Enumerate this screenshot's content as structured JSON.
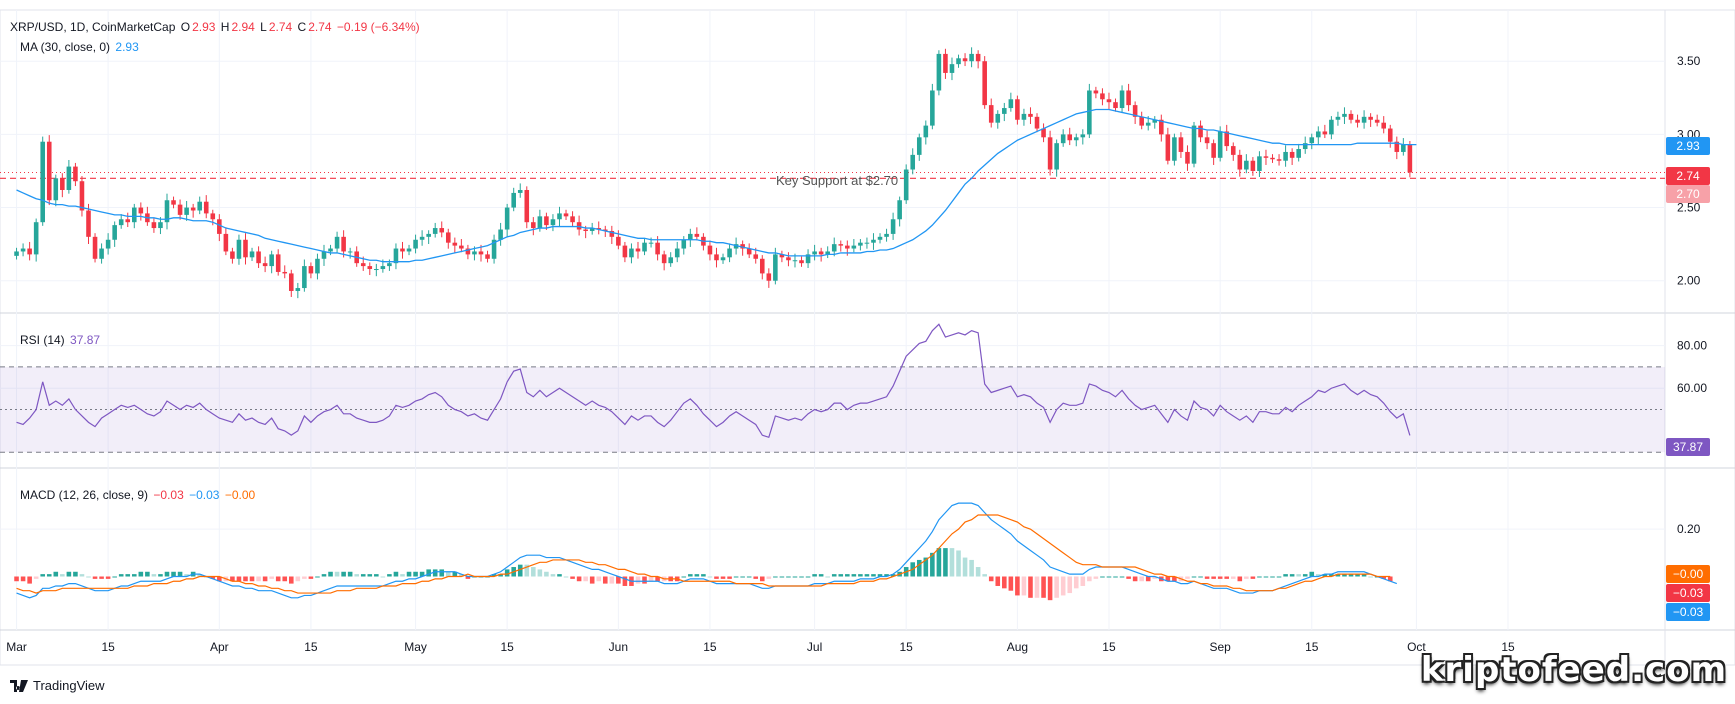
{
  "legend": {
    "symbol": "XRP/USD, 1D, CoinMarketCap",
    "o_label": "O",
    "o_value": "2.93",
    "h_label": "H",
    "h_value": "2.94",
    "l_label": "L",
    "l_value": "2.74",
    "c_label": "C",
    "c_value": "2.74",
    "change": "−0.19 (−6.34%)",
    "ma_label": "MA (30, close, 0)",
    "ma_value": "2.93",
    "rsi_label": "RSI (14)",
    "rsi_value": "37.87",
    "macd_label": "MACD (12, 26, close, 9)",
    "macd_hist": "−0.03",
    "macd_line": "−0.03",
    "macd_signal": "−0.00"
  },
  "annotation": {
    "support_label": "Key Support at $2.70"
  },
  "price_tags": {
    "ma": "2.93",
    "last": "2.74",
    "support": "2.70",
    "rsi": "37.87",
    "macd_signal": "−0.00",
    "macd_hist": "−0.03",
    "macd_line": "−0.03"
  },
  "branding": {
    "tradingview": "TradingView",
    "watermark": "kriptofeed.com"
  },
  "colors": {
    "up": "#26a69a",
    "down": "#f23645",
    "ma": "#2196f3",
    "rsi": "#7e57c2",
    "macd": "#2196f3",
    "signal": "#ff6d00",
    "support": "#f23645"
  },
  "chart_data": {
    "type": "candlestick",
    "title": "XRP/USD, 1D, CoinMarketCap",
    "price_axis": {
      "ticks": [
        2.0,
        2.5,
        3.0,
        3.5
      ],
      "tick_labels": [
        "2.00",
        "2.50",
        "3.00",
        "3.50"
      ],
      "ylim": [
        1.8,
        3.85
      ]
    },
    "rsi_axis": {
      "ticks": [
        60,
        80
      ],
      "tick_labels": [
        "60.00",
        "80.00"
      ],
      "ylim": [
        24,
        92
      ],
      "band": [
        30,
        70
      ],
      "mid": 50
    },
    "macd_axis": {
      "ticks": [
        0.2
      ],
      "tick_labels": [
        "0.20"
      ],
      "ylim": [
        -0.15,
        0.45
      ]
    },
    "x_ticks": [
      {
        "day": 0,
        "label": "Mar"
      },
      {
        "day": 14,
        "label": "15"
      },
      {
        "day": 31,
        "label": "Apr"
      },
      {
        "day": 45,
        "label": "15"
      },
      {
        "day": 61,
        "label": "May"
      },
      {
        "day": 75,
        "label": "15"
      },
      {
        "day": 92,
        "label": "Jun"
      },
      {
        "day": 106,
        "label": "15"
      },
      {
        "day": 122,
        "label": "Jul"
      },
      {
        "day": 136,
        "label": "15"
      },
      {
        "day": 153,
        "label": "Aug"
      },
      {
        "day": 167,
        "label": "15"
      },
      {
        "day": 184,
        "label": "Sep"
      },
      {
        "day": 198,
        "label": "15"
      },
      {
        "day": 214,
        "label": "Oct"
      },
      {
        "day": 228,
        "label": "15"
      }
    ],
    "x_range": [
      -1,
      252
    ],
    "support_level": 2.7,
    "closes": [
      2.2,
      2.22,
      2.18,
      2.4,
      2.95,
      2.55,
      2.7,
      2.62,
      2.78,
      2.68,
      2.48,
      2.3,
      2.15,
      2.22,
      2.28,
      2.38,
      2.42,
      2.4,
      2.5,
      2.46,
      2.4,
      2.36,
      2.4,
      2.55,
      2.52,
      2.45,
      2.5,
      2.48,
      2.54,
      2.46,
      2.42,
      2.32,
      2.2,
      2.15,
      2.28,
      2.16,
      2.2,
      2.12,
      2.1,
      2.18,
      2.06,
      2.05,
      1.93,
      1.95,
      2.1,
      2.05,
      2.15,
      2.2,
      2.22,
      2.3,
      2.2,
      2.2,
      2.12,
      2.1,
      2.08,
      2.08,
      2.1,
      2.12,
      2.22,
      2.2,
      2.22,
      2.28,
      2.3,
      2.32,
      2.36,
      2.33,
      2.26,
      2.24,
      2.22,
      2.18,
      2.2,
      2.18,
      2.15,
      2.28,
      2.35,
      2.5,
      2.6,
      2.62,
      2.4,
      2.36,
      2.44,
      2.38,
      2.42,
      2.46,
      2.44,
      2.4,
      2.35,
      2.34,
      2.36,
      2.35,
      2.34,
      2.3,
      2.24,
      2.16,
      2.22,
      2.2,
      2.26,
      2.26,
      2.18,
      2.12,
      2.16,
      2.22,
      2.28,
      2.32,
      2.3,
      2.24,
      2.18,
      2.14,
      2.16,
      2.22,
      2.25,
      2.22,
      2.18,
      2.15,
      2.05,
      2.0,
      2.18,
      2.16,
      2.14,
      2.14,
      2.12,
      2.18,
      2.2,
      2.18,
      2.2,
      2.25,
      2.24,
      2.22,
      2.24,
      2.26,
      2.26,
      2.28,
      2.3,
      2.32,
      2.42,
      2.55,
      2.76,
      2.86,
      2.98,
      3.06,
      3.3,
      3.55,
      3.42,
      3.48,
      3.52,
      3.5,
      3.55,
      3.5,
      3.2,
      3.08,
      3.14,
      3.18,
      3.24,
      3.1,
      3.14,
      3.12,
      3.04,
      2.98,
      2.76,
      2.94,
      3.0,
      2.96,
      2.98,
      3.0,
      3.3,
      3.28,
      3.24,
      3.22,
      3.18,
      3.3,
      3.2,
      3.12,
      3.06,
      3.08,
      3.1,
      3.0,
      2.82,
      2.98,
      2.88,
      2.8,
      3.06,
      2.98,
      2.94,
      2.84,
      3.02,
      2.92,
      2.86,
      2.76,
      2.82,
      2.75,
      2.85,
      2.84,
      2.83,
      2.82,
      2.88,
      2.84,
      2.9,
      2.94,
      2.98,
      3.02,
      3.0,
      3.1,
      3.12,
      3.14,
      3.1,
      3.08,
      3.12,
      3.1,
      3.08,
      3.04,
      2.95,
      2.88,
      2.93,
      2.74
    ],
    "ma30": [
      2.62,
      2.6,
      2.58,
      2.56,
      2.55,
      2.53,
      2.52,
      2.52,
      2.51,
      2.51,
      2.5,
      2.49,
      2.48,
      2.47,
      2.46,
      2.45,
      2.45,
      2.44,
      2.44,
      2.44,
      2.43,
      2.43,
      2.42,
      2.42,
      2.43,
      2.43,
      2.42,
      2.41,
      2.41,
      2.41,
      2.4,
      2.38,
      2.36,
      2.35,
      2.34,
      2.33,
      2.32,
      2.31,
      2.29,
      2.28,
      2.27,
      2.26,
      2.25,
      2.24,
      2.23,
      2.22,
      2.21,
      2.2,
      2.19,
      2.19,
      2.18,
      2.17,
      2.16,
      2.15,
      2.14,
      2.14,
      2.13,
      2.13,
      2.13,
      2.13,
      2.13,
      2.14,
      2.14,
      2.15,
      2.16,
      2.17,
      2.18,
      2.19,
      2.2,
      2.21,
      2.22,
      2.23,
      2.24,
      2.26,
      2.28,
      2.3,
      2.31,
      2.33,
      2.34,
      2.35,
      2.36,
      2.36,
      2.37,
      2.37,
      2.37,
      2.37,
      2.37,
      2.36,
      2.36,
      2.35,
      2.34,
      2.33,
      2.32,
      2.31,
      2.3,
      2.29,
      2.29,
      2.28,
      2.28,
      2.28,
      2.28,
      2.28,
      2.28,
      2.28,
      2.28,
      2.27,
      2.27,
      2.26,
      2.26,
      2.25,
      2.24,
      2.23,
      2.22,
      2.21,
      2.2,
      2.19,
      2.19,
      2.18,
      2.17,
      2.17,
      2.17,
      2.17,
      2.17,
      2.17,
      2.18,
      2.18,
      2.19,
      2.19,
      2.19,
      2.19,
      2.2,
      2.2,
      2.21,
      2.21,
      2.22,
      2.24,
      2.26,
      2.28,
      2.31,
      2.34,
      2.38,
      2.43,
      2.48,
      2.54,
      2.6,
      2.66,
      2.7,
      2.75,
      2.79,
      2.83,
      2.87,
      2.9,
      2.93,
      2.96,
      2.98,
      3.0,
      3.02,
      3.04,
      3.06,
      3.08,
      3.1,
      3.12,
      3.14,
      3.15,
      3.16,
      3.17,
      3.17,
      3.17,
      3.16,
      3.15,
      3.14,
      3.13,
      3.12,
      3.11,
      3.1,
      3.09,
      3.08,
      3.07,
      3.06,
      3.05,
      3.04,
      3.04,
      3.03,
      3.03,
      3.02,
      3.01,
      3.0,
      2.99,
      2.98,
      2.97,
      2.96,
      2.95,
      2.94,
      2.94,
      2.93,
      2.93,
      2.93,
      2.93,
      2.93,
      2.93,
      2.93,
      2.93,
      2.93,
      2.93,
      2.93,
      2.94,
      2.94,
      2.94,
      2.94,
      2.94,
      2.94,
      2.94,
      2.93,
      2.93,
      2.93
    ],
    "rsi": [
      44,
      43,
      46,
      50,
      63,
      52,
      54,
      52,
      55,
      50,
      47,
      44,
      42,
      46,
      48,
      50,
      52,
      51,
      52,
      50,
      48,
      47,
      49,
      54,
      52,
      50,
      52,
      51,
      53,
      50,
      48,
      46,
      45,
      44,
      48,
      45,
      46,
      44,
      43,
      46,
      41,
      40,
      38,
      40,
      47,
      44,
      47,
      49,
      50,
      52,
      48,
      48,
      46,
      45,
      44,
      44,
      45,
      47,
      52,
      51,
      52,
      54,
      55,
      57,
      58,
      56,
      52,
      50,
      49,
      47,
      48,
      46,
      45,
      50,
      55,
      63,
      68,
      69,
      58,
      56,
      59,
      56,
      58,
      60,
      58,
      56,
      54,
      52,
      54,
      52,
      51,
      49,
      46,
      43,
      47,
      45,
      47,
      47,
      44,
      42,
      45,
      49,
      53,
      55,
      52,
      48,
      45,
      42,
      44,
      47,
      49,
      47,
      45,
      43,
      38,
      37,
      47,
      46,
      45,
      46,
      45,
      48,
      50,
      49,
      50,
      53,
      53,
      50,
      52,
      53,
      53,
      54,
      55,
      56,
      61,
      68,
      75,
      78,
      81,
      82,
      87,
      90,
      84,
      85,
      86,
      85,
      87,
      86,
      62,
      58,
      59,
      60,
      61,
      56,
      57,
      56,
      53,
      51,
      44,
      50,
      53,
      52,
      52,
      53,
      62,
      61,
      59,
      58,
      56,
      59,
      55,
      52,
      50,
      51,
      52,
      48,
      44,
      50,
      47,
      45,
      54,
      51,
      50,
      47,
      52,
      49,
      47,
      45,
      47,
      44,
      49,
      49,
      48,
      48,
      51,
      49,
      52,
      54,
      56,
      59,
      58,
      60,
      61,
      62,
      59,
      57,
      59,
      57,
      56,
      53,
      49,
      46,
      48,
      37.87
    ],
    "macd": [
      -0.07,
      -0.08,
      -0.09,
      -0.08,
      -0.05,
      -0.05,
      -0.04,
      -0.04,
      -0.03,
      -0.03,
      -0.04,
      -0.05,
      -0.06,
      -0.06,
      -0.06,
      -0.05,
      -0.04,
      -0.04,
      -0.03,
      -0.02,
      -0.02,
      -0.02,
      -0.02,
      -0.01,
      0.0,
      0.0,
      0.0,
      0.01,
      0.01,
      0.0,
      -0.01,
      -0.02,
      -0.03,
      -0.04,
      -0.04,
      -0.05,
      -0.05,
      -0.06,
      -0.06,
      -0.06,
      -0.07,
      -0.08,
      -0.09,
      -0.09,
      -0.08,
      -0.08,
      -0.07,
      -0.06,
      -0.05,
      -0.04,
      -0.04,
      -0.04,
      -0.04,
      -0.04,
      -0.04,
      -0.04,
      -0.04,
      -0.03,
      -0.02,
      -0.02,
      -0.01,
      -0.01,
      0.0,
      0.01,
      0.02,
      0.02,
      0.02,
      0.02,
      0.01,
      0.0,
      0.0,
      0.0,
      0.0,
      0.01,
      0.02,
      0.04,
      0.06,
      0.08,
      0.09,
      0.09,
      0.09,
      0.08,
      0.08,
      0.08,
      0.07,
      0.06,
      0.05,
      0.04,
      0.03,
      0.03,
      0.02,
      0.01,
      0.0,
      -0.01,
      -0.02,
      -0.02,
      -0.02,
      -0.02,
      -0.02,
      -0.03,
      -0.03,
      -0.03,
      -0.02,
      -0.01,
      -0.01,
      -0.01,
      -0.02,
      -0.03,
      -0.03,
      -0.03,
      -0.03,
      -0.03,
      -0.03,
      -0.04,
      -0.05,
      -0.05,
      -0.04,
      -0.04,
      -0.04,
      -0.04,
      -0.04,
      -0.04,
      -0.03,
      -0.03,
      -0.03,
      -0.02,
      -0.02,
      -0.02,
      -0.02,
      -0.01,
      -0.01,
      -0.01,
      0.0,
      0.0,
      0.01,
      0.03,
      0.06,
      0.09,
      0.12,
      0.15,
      0.19,
      0.24,
      0.27,
      0.3,
      0.31,
      0.31,
      0.31,
      0.3,
      0.27,
      0.24,
      0.22,
      0.2,
      0.18,
      0.15,
      0.13,
      0.11,
      0.09,
      0.07,
      0.04,
      0.03,
      0.02,
      0.01,
      0.01,
      0.01,
      0.03,
      0.04,
      0.04,
      0.04,
      0.04,
      0.04,
      0.03,
      0.02,
      0.01,
      0.0,
      0.0,
      -0.01,
      -0.02,
      -0.02,
      -0.03,
      -0.03,
      -0.02,
      -0.03,
      -0.04,
      -0.05,
      -0.05,
      -0.05,
      -0.06,
      -0.07,
      -0.07,
      -0.07,
      -0.06,
      -0.06,
      -0.06,
      -0.05,
      -0.04,
      -0.03,
      -0.02,
      -0.01,
      0.0,
      0.0,
      0.01,
      0.01,
      0.02,
      0.02,
      0.02,
      0.02,
      0.02,
      0.01,
      0.0,
      -0.01,
      -0.02,
      -0.03
    ],
    "signal": [
      -0.05,
      -0.06,
      -0.06,
      -0.07,
      -0.06,
      -0.06,
      -0.06,
      -0.05,
      -0.05,
      -0.05,
      -0.05,
      -0.05,
      -0.05,
      -0.05,
      -0.05,
      -0.05,
      -0.05,
      -0.05,
      -0.04,
      -0.04,
      -0.04,
      -0.03,
      -0.03,
      -0.03,
      -0.02,
      -0.02,
      -0.01,
      -0.01,
      0.0,
      0.0,
      0.0,
      0.0,
      -0.01,
      -0.02,
      -0.02,
      -0.03,
      -0.03,
      -0.04,
      -0.04,
      -0.05,
      -0.05,
      -0.06,
      -0.06,
      -0.07,
      -0.07,
      -0.07,
      -0.07,
      -0.07,
      -0.07,
      -0.06,
      -0.06,
      -0.06,
      -0.05,
      -0.05,
      -0.05,
      -0.05,
      -0.04,
      -0.04,
      -0.04,
      -0.03,
      -0.03,
      -0.03,
      -0.02,
      -0.02,
      -0.01,
      -0.01,
      0.0,
      0.0,
      0.0,
      0.01,
      0.0,
      0.0,
      0.0,
      0.0,
      0.01,
      0.01,
      0.02,
      0.03,
      0.04,
      0.05,
      0.06,
      0.06,
      0.07,
      0.07,
      0.07,
      0.07,
      0.07,
      0.06,
      0.06,
      0.05,
      0.05,
      0.04,
      0.03,
      0.03,
      0.02,
      0.01,
      0.01,
      0.0,
      0.0,
      -0.01,
      -0.01,
      -0.01,
      -0.02,
      -0.02,
      -0.02,
      -0.02,
      -0.02,
      -0.02,
      -0.02,
      -0.02,
      -0.03,
      -0.03,
      -0.03,
      -0.03,
      -0.03,
      -0.04,
      -0.04,
      -0.04,
      -0.04,
      -0.04,
      -0.04,
      -0.04,
      -0.04,
      -0.04,
      -0.03,
      -0.03,
      -0.03,
      -0.03,
      -0.03,
      -0.02,
      -0.02,
      -0.02,
      -0.01,
      -0.01,
      0.0,
      0.01,
      0.02,
      0.03,
      0.05,
      0.07,
      0.09,
      0.12,
      0.15,
      0.18,
      0.2,
      0.23,
      0.24,
      0.26,
      0.26,
      0.26,
      0.26,
      0.25,
      0.24,
      0.23,
      0.21,
      0.2,
      0.18,
      0.16,
      0.14,
      0.12,
      0.1,
      0.08,
      0.06,
      0.05,
      0.05,
      0.05,
      0.04,
      0.04,
      0.04,
      0.04,
      0.04,
      0.04,
      0.03,
      0.02,
      0.01,
      0.01,
      0.0,
      0.0,
      -0.01,
      -0.02,
      -0.02,
      -0.03,
      -0.03,
      -0.04,
      -0.04,
      -0.04,
      -0.05,
      -0.05,
      -0.06,
      -0.06,
      -0.06,
      -0.06,
      -0.06,
      -0.05,
      -0.05,
      -0.04,
      -0.03,
      -0.02,
      -0.02,
      -0.01,
      0.0,
      0.0,
      0.01,
      0.01,
      0.01,
      0.01,
      0.01,
      0.01,
      0.0,
      0.0,
      0.0
    ]
  }
}
